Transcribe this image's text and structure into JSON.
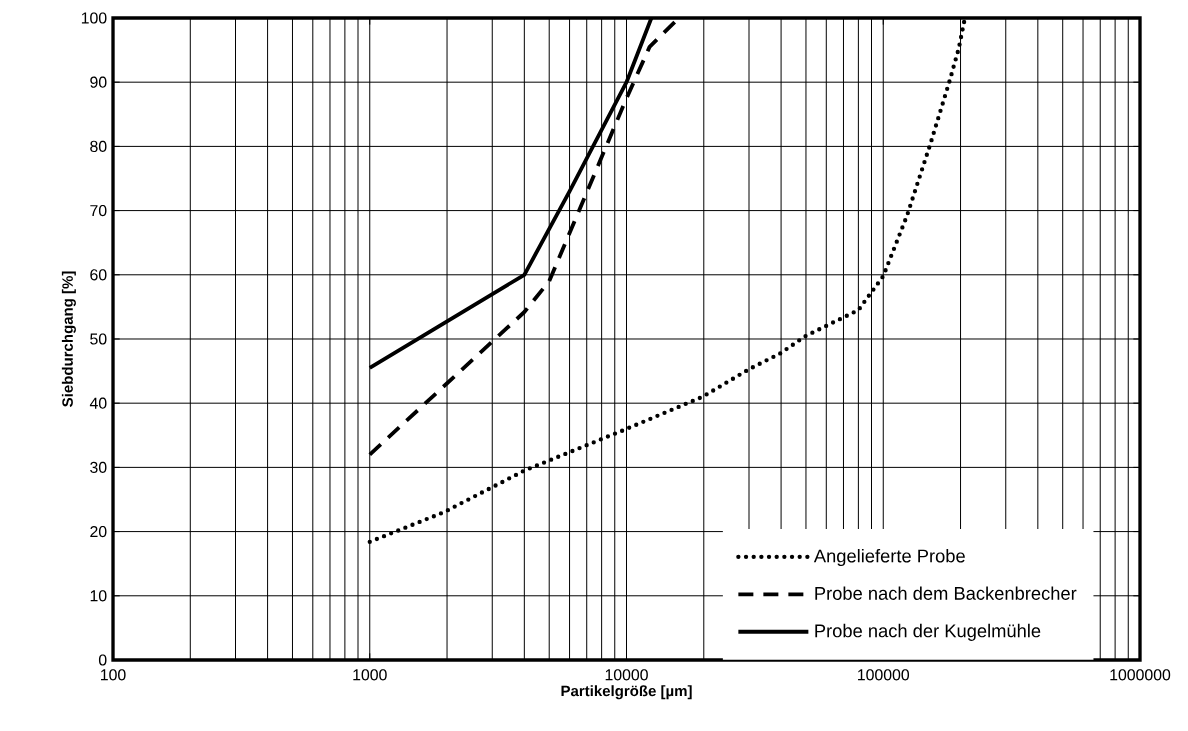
{
  "chart_data": {
    "type": "line",
    "xlabel": "Partikelgröße [µm]",
    "ylabel": "Siebdurchgang  [%]",
    "log": "x",
    "xlim": [
      100,
      1000000
    ],
    "xticks": [
      100,
      1000,
      10000,
      100000,
      1000000
    ],
    "ylim": [
      0,
      100
    ],
    "yticks": [
      0,
      10,
      20,
      30,
      40,
      50,
      60,
      70,
      80,
      90,
      100
    ],
    "grid": true,
    "legend": "bottom right",
    "marker": "none",
    "series": [
      {
        "name": "Angelieferte Probe",
        "color": "#000000",
        "line_style": "dotted",
        "x": [
          1000,
          1940,
          4000,
          9600,
          19800,
          30000,
          39500,
          50000,
          80000,
          100000,
          123700,
          152900,
          181300,
          196700,
          208000
        ],
        "values": [
          18.4,
          23.0,
          29.5,
          35.7,
          41.0,
          45.3,
          47.7,
          50.5,
          54.5,
          59.8,
          69.2,
          80.5,
          90.2,
          95.2,
          100
        ]
      },
      {
        "name": "Probe nach dem Backenbrecher",
        "color": "#000000",
        "line_style": "dashed",
        "x": [
          1000,
          4000,
          5000,
          10000,
          12300,
          16000
        ],
        "values": [
          32,
          54.2,
          59,
          87.5,
          95.5,
          100
        ]
      },
      {
        "name": "Probe nach der Kugelmühle",
        "color": "#000000",
        "line_style": "solid",
        "x": [
          1000,
          4000,
          6000,
          10000,
          12500
        ],
        "values": [
          45.5,
          60,
          73,
          90,
          100
        ]
      }
    ]
  }
}
